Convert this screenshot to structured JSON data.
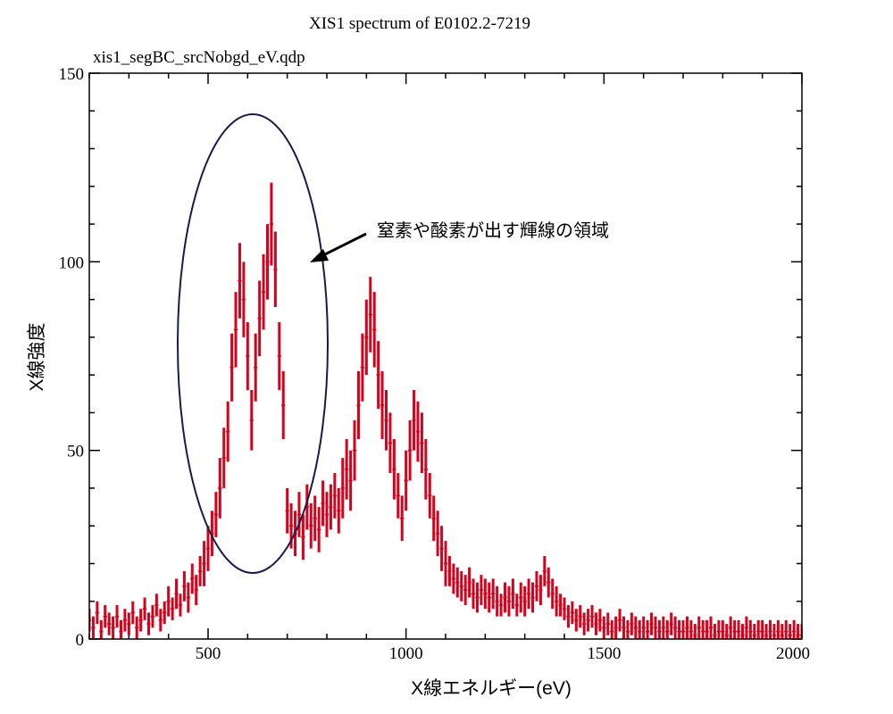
{
  "chart_data": {
    "type": "scatter",
    "title": "XIS1 spectrum of E0102.2-7219",
    "subtitle": "xis1_segBC_srcNobgd_eV.qdp",
    "xlabel": "X線エネルギー(eV)",
    "ylabel": "X線強度",
    "xlim": [
      200,
      2000
    ],
    "ylim": [
      0,
      150
    ],
    "xticks": [
      500,
      1000,
      1500,
      2000
    ],
    "xtick_labels": [
      "500",
      "1000",
      "1500",
      "2000"
    ],
    "yticks": [
      0,
      50,
      100,
      150
    ],
    "ytick_labels": [
      "0",
      "50",
      "100",
      "150"
    ],
    "grid": false,
    "series_color": "#d9001b",
    "annotation_color": "#1a1a4a",
    "annotation": "窒素や酸素が出す輝線の領域",
    "x_start": 200,
    "x_step": 10,
    "values": [
      5,
      3,
      7,
      2,
      6,
      4,
      3,
      6,
      2,
      5,
      4,
      7,
      3,
      5,
      8,
      4,
      6,
      9,
      5,
      7,
      10,
      8,
      12,
      9,
      14,
      11,
      16,
      13,
      18,
      20,
      24,
      28,
      33,
      40,
      48,
      55,
      72,
      82,
      95,
      90,
      75,
      58,
      72,
      85,
      92,
      100,
      110,
      98,
      75,
      62,
      34,
      30,
      28,
      33,
      27,
      35,
      30,
      32,
      29,
      36,
      33,
      35,
      38,
      34,
      40,
      45,
      42,
      50,
      62,
      72,
      80,
      86,
      82,
      70,
      62,
      58,
      52,
      45,
      38,
      32,
      42,
      50,
      58,
      55,
      52,
      45,
      38,
      32,
      28,
      24,
      20,
      18,
      16,
      15,
      14,
      13,
      15,
      12,
      11,
      13,
      12,
      11,
      12,
      10,
      9,
      11,
      10,
      12,
      9,
      11,
      10,
      12,
      11,
      14,
      13,
      18,
      15,
      12,
      10,
      9,
      8,
      6,
      7,
      5,
      6,
      4,
      5,
      6,
      4,
      5,
      3,
      4,
      2,
      3,
      5,
      3,
      2,
      4,
      3,
      2,
      3,
      2,
      4,
      3,
      2,
      3,
      2,
      4,
      3,
      2,
      2,
      3,
      2,
      1,
      3,
      2,
      2,
      3,
      1,
      2,
      2,
      1,
      3,
      2,
      2,
      1,
      3,
      2,
      1,
      2,
      2,
      1,
      2,
      1,
      2,
      1,
      2,
      1,
      2,
      1,
      1
    ],
    "yerr": [
      3,
      3,
      3,
      3,
      3,
      3,
      3,
      3,
      3,
      3,
      3,
      3,
      3,
      3,
      3,
      3,
      3,
      3,
      3,
      3,
      4,
      3,
      4,
      3,
      4,
      4,
      4,
      4,
      4,
      6,
      6,
      6,
      6,
      8,
      8,
      8,
      9,
      10,
      10,
      10,
      9,
      8,
      9,
      10,
      10,
      10,
      11,
      10,
      9,
      9,
      6,
      6,
      6,
      6,
      6,
      6,
      6,
      6,
      6,
      6,
      6,
      6,
      6,
      6,
      8,
      8,
      8,
      8,
      9,
      9,
      10,
      10,
      10,
      9,
      9,
      8,
      8,
      8,
      6,
      6,
      8,
      8,
      8,
      8,
      8,
      8,
      6,
      6,
      6,
      6,
      6,
      4,
      4,
      4,
      4,
      4,
      4,
      4,
      4,
      4,
      4,
      4,
      4,
      4,
      3,
      4,
      4,
      4,
      3,
      4,
      4,
      4,
      4,
      4,
      4,
      4,
      4,
      4,
      4,
      3,
      3,
      3,
      3,
      3,
      3,
      3,
      3,
      3,
      3,
      3,
      3,
      3,
      3,
      3,
      3,
      3,
      3,
      3,
      3,
      3,
      3,
      3,
      3,
      3,
      3,
      3,
      3,
      3,
      3,
      3,
      3,
      3,
      3,
      3,
      3,
      3,
      3,
      3,
      3,
      3,
      3,
      3,
      3,
      3,
      3,
      3,
      3,
      3,
      3,
      3,
      3,
      3,
      3,
      3,
      3,
      3,
      3,
      3,
      3,
      3,
      3
    ]
  }
}
